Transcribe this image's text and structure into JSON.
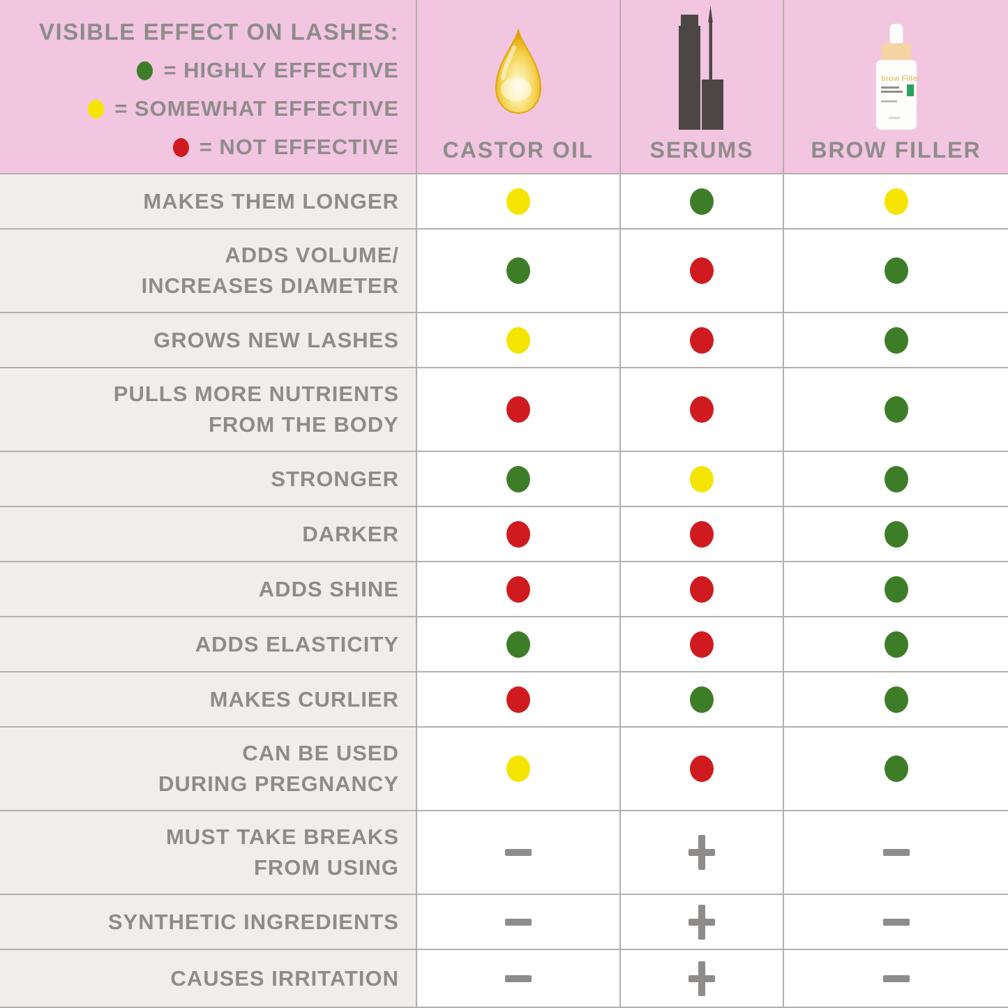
{
  "legend": {
    "title": "VISIBLE EFFECT ON LASHES:",
    "items": [
      {
        "color": "green",
        "label": "= HIGHLY EFFECTIVE"
      },
      {
        "color": "yellow",
        "label": "= SOMEWHAT EFFECTIVE"
      },
      {
        "color": "red",
        "label": "= NOT EFFECTIVE"
      }
    ]
  },
  "columns": [
    {
      "label": "CASTOR OIL",
      "icon": "oil-drop-icon"
    },
    {
      "label": "SERUMS",
      "icon": "serum-tube-icon"
    },
    {
      "label": "BROW FILLER",
      "icon": "dropper-bottle-icon",
      "bottle_text": "brow Filler"
    }
  ],
  "rows": [
    {
      "label": "MAKES THEM LONGER",
      "values": [
        "yellow",
        "green",
        "yellow"
      ]
    },
    {
      "label": "ADDS VOLUME/\nINCREASES DIAMETER",
      "values": [
        "green",
        "red",
        "green"
      ]
    },
    {
      "label": "GROWS NEW LASHES",
      "values": [
        "yellow",
        "red",
        "green"
      ]
    },
    {
      "label": "PULLS MORE NUTRIENTS\nFROM THE BODY",
      "values": [
        "red",
        "red",
        "green"
      ]
    },
    {
      "label": "STRONGER",
      "values": [
        "green",
        "yellow",
        "green"
      ]
    },
    {
      "label": "DARKER",
      "values": [
        "red",
        "red",
        "green"
      ]
    },
    {
      "label": "ADDS SHINE",
      "values": [
        "red",
        "red",
        "green"
      ]
    },
    {
      "label": "ADDS ELASTICITY",
      "values": [
        "green",
        "red",
        "green"
      ]
    },
    {
      "label": "MAKES CURLIER",
      "values": [
        "red",
        "green",
        "green"
      ]
    },
    {
      "label": "CAN BE USED\nDURING PREGNANCY",
      "values": [
        "yellow",
        "red",
        "green"
      ]
    },
    {
      "label": "MUST TAKE BREAKS\nFROM USING",
      "values": [
        "minus",
        "plus",
        "minus"
      ]
    },
    {
      "label": "SYNTHETIC INGREDIENTS",
      "values": [
        "minus",
        "plus",
        "minus"
      ]
    },
    {
      "label": "CAUSES IRRITATION",
      "values": [
        "minus",
        "plus",
        "minus"
      ]
    }
  ],
  "colors": {
    "green": "#3e7d28",
    "yellow": "#f5e400",
    "red": "#cf1b1f",
    "pink": "#f2c5e1",
    "label_bg": "#efeeec",
    "text_gray": "#8e8c8a",
    "line": "#b2afac",
    "icon_dark": "#4c4744"
  },
  "chart_data": {
    "type": "table",
    "title": "VISIBLE EFFECT ON LASHES:",
    "legend": {
      "green": "HIGHLY EFFECTIVE",
      "yellow": "SOMEWHAT EFFECTIVE",
      "red": "NOT EFFECTIVE"
    },
    "columns": [
      "CASTOR OIL",
      "SERUMS",
      "BROW FILLER"
    ],
    "rows": [
      {
        "label": "MAKES THEM LONGER",
        "CASTOR OIL": "yellow",
        "SERUMS": "green",
        "BROW FILLER": "yellow"
      },
      {
        "label": "ADDS VOLUME/ INCREASES DIAMETER",
        "CASTOR OIL": "green",
        "SERUMS": "red",
        "BROW FILLER": "green"
      },
      {
        "label": "GROWS NEW LASHES",
        "CASTOR OIL": "yellow",
        "SERUMS": "red",
        "BROW FILLER": "green"
      },
      {
        "label": "PULLS MORE NUTRIENTS FROM THE BODY",
        "CASTOR OIL": "red",
        "SERUMS": "red",
        "BROW FILLER": "green"
      },
      {
        "label": "STRONGER",
        "CASTOR OIL": "green",
        "SERUMS": "yellow",
        "BROW FILLER": "green"
      },
      {
        "label": "DARKER",
        "CASTOR OIL": "red",
        "SERUMS": "red",
        "BROW FILLER": "green"
      },
      {
        "label": "ADDS SHINE",
        "CASTOR OIL": "red",
        "SERUMS": "red",
        "BROW FILLER": "green"
      },
      {
        "label": "ADDS ELASTICITY",
        "CASTOR OIL": "green",
        "SERUMS": "red",
        "BROW FILLER": "green"
      },
      {
        "label": "MAKES CURLIER",
        "CASTOR OIL": "red",
        "SERUMS": "green",
        "BROW FILLER": "green"
      },
      {
        "label": "CAN BE USED DURING PREGNANCY",
        "CASTOR OIL": "yellow",
        "SERUMS": "red",
        "BROW FILLER": "green"
      },
      {
        "label": "MUST TAKE BREAKS FROM USING",
        "CASTOR OIL": "-",
        "SERUMS": "+",
        "BROW FILLER": "-"
      },
      {
        "label": "SYNTHETIC INGREDIENTS",
        "CASTOR OIL": "-",
        "SERUMS": "+",
        "BROW FILLER": "-"
      },
      {
        "label": "CAUSES IRRITATION",
        "CASTOR OIL": "-",
        "SERUMS": "+",
        "BROW FILLER": "-"
      }
    ]
  }
}
